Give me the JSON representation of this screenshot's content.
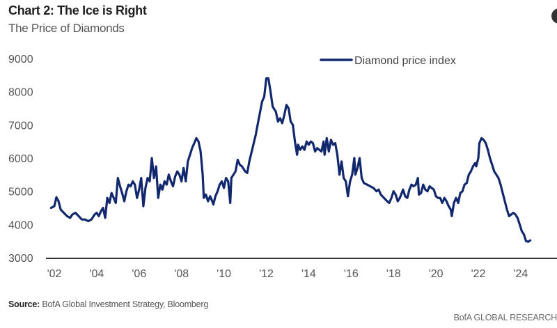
{
  "header": {
    "title": "Chart 2: The Ice is Right",
    "subtitle": "The Price of Diamonds"
  },
  "footer": {
    "source_label": "Source:",
    "source_text": "BofA Global Investment Strategy, Bloomberg",
    "brand": "BofA GLOBAL RESEARCH"
  },
  "colors": {
    "series": "#12286e",
    "axis": "#333333"
  },
  "chart_data": {
    "type": "line",
    "title": "Chart 2: The Ice is Right",
    "subtitle": "The Price of Diamonds",
    "xlabel": "",
    "ylabel": "",
    "ylim": [
      3000,
      9000
    ],
    "xlim": [
      2001.85,
      2025.3
    ],
    "grid": false,
    "legend": {
      "position": "top-right",
      "entries": [
        "Diamond price index"
      ]
    },
    "y_ticks": [
      {
        "value": 9000,
        "label": "9000"
      },
      {
        "value": 8000,
        "label": "8000"
      },
      {
        "value": 7000,
        "label": "7000"
      },
      {
        "value": 6000,
        "label": "6000"
      },
      {
        "value": 5000,
        "label": "5000"
      },
      {
        "value": 4000,
        "label": "4000"
      },
      {
        "value": 3000,
        "label": "3000"
      }
    ],
    "x_ticks": [
      {
        "value": 2002,
        "label": "'02"
      },
      {
        "value": 2004,
        "label": "'04"
      },
      {
        "value": 2006,
        "label": "'06"
      },
      {
        "value": 2008,
        "label": "'08"
      },
      {
        "value": 2010,
        "label": "'10"
      },
      {
        "value": 2012,
        "label": "'12"
      },
      {
        "value": 2014,
        "label": "'14"
      },
      {
        "value": 2016,
        "label": "'16"
      },
      {
        "value": 2018,
        "label": "'18"
      },
      {
        "value": 2020,
        "label": "'20"
      },
      {
        "value": 2022,
        "label": "'22"
      },
      {
        "value": 2024,
        "label": "'24"
      }
    ],
    "series": [
      {
        "name": "Diamond price index",
        "points": [
          [
            1.85,
            4500
          ],
          [
            2.0,
            4550
          ],
          [
            2.1,
            4820
          ],
          [
            2.2,
            4700
          ],
          [
            2.3,
            4450
          ],
          [
            2.45,
            4350
          ],
          [
            2.6,
            4250
          ],
          [
            2.75,
            4200
          ],
          [
            2.85,
            4300
          ],
          [
            3.0,
            4350
          ],
          [
            3.15,
            4250
          ],
          [
            3.3,
            4150
          ],
          [
            3.45,
            4150
          ],
          [
            3.6,
            4100
          ],
          [
            3.75,
            4150
          ],
          [
            3.9,
            4300
          ],
          [
            4.0,
            4350
          ],
          [
            4.1,
            4250
          ],
          [
            4.2,
            4400
          ],
          [
            4.3,
            4500
          ],
          [
            4.4,
            4200
          ],
          [
            4.5,
            4800
          ],
          [
            4.6,
            4650
          ],
          [
            4.7,
            4950
          ],
          [
            4.8,
            4800
          ],
          [
            4.9,
            4650
          ],
          [
            5.0,
            5400
          ],
          [
            5.1,
            5150
          ],
          [
            5.2,
            4950
          ],
          [
            5.3,
            4700
          ],
          [
            5.4,
            5000
          ],
          [
            5.5,
            5200
          ],
          [
            5.6,
            5150
          ],
          [
            5.7,
            5300
          ],
          [
            5.8,
            5200
          ],
          [
            5.9,
            4800
          ],
          [
            6.0,
            5050
          ],
          [
            6.1,
            5400
          ],
          [
            6.2,
            4550
          ],
          [
            6.3,
            5100
          ],
          [
            6.4,
            5400
          ],
          [
            6.5,
            5300
          ],
          [
            6.6,
            6000
          ],
          [
            6.7,
            5400
          ],
          [
            6.8,
            5750
          ],
          [
            6.9,
            4800
          ],
          [
            7.0,
            5200
          ],
          [
            7.1,
            5050
          ],
          [
            7.2,
            5300
          ],
          [
            7.3,
            5200
          ],
          [
            7.4,
            5500
          ],
          [
            7.5,
            5300
          ],
          [
            7.6,
            5150
          ],
          [
            7.7,
            5450
          ],
          [
            7.8,
            5600
          ],
          [
            7.9,
            5500
          ],
          [
            8.0,
            5300
          ],
          [
            8.1,
            5700
          ],
          [
            8.2,
            5300
          ],
          [
            8.3,
            5900
          ],
          [
            8.4,
            6100
          ],
          [
            8.5,
            6300
          ],
          [
            8.6,
            6450
          ],
          [
            8.7,
            6600
          ],
          [
            8.8,
            6500
          ],
          [
            8.9,
            6200
          ],
          [
            9.0,
            5500
          ],
          [
            9.05,
            4800
          ],
          [
            9.15,
            4900
          ],
          [
            9.25,
            4700
          ],
          [
            9.35,
            4850
          ],
          [
            9.45,
            4700
          ],
          [
            9.5,
            4600
          ],
          [
            9.6,
            4850
          ],
          [
            9.7,
            5000
          ],
          [
            9.8,
            5200
          ],
          [
            9.9,
            5300
          ],
          [
            10.0,
            5100
          ],
          [
            10.1,
            5400
          ],
          [
            10.2,
            5300
          ],
          [
            10.3,
            4650
          ],
          [
            10.35,
            5400
          ],
          [
            10.45,
            5500
          ],
          [
            10.55,
            5600
          ],
          [
            10.65,
            5950
          ],
          [
            10.75,
            5800
          ],
          [
            10.85,
            5750
          ],
          [
            11.0,
            5600
          ],
          [
            11.1,
            5550
          ],
          [
            11.2,
            5900
          ],
          [
            11.35,
            6300
          ],
          [
            11.5,
            6700
          ],
          [
            11.65,
            7200
          ],
          [
            11.8,
            7700
          ],
          [
            11.9,
            7850
          ],
          [
            12.0,
            8400
          ],
          [
            12.1,
            8400
          ],
          [
            12.2,
            8000
          ],
          [
            12.3,
            7550
          ],
          [
            12.45,
            7400
          ],
          [
            12.55,
            7100
          ],
          [
            12.65,
            7200
          ],
          [
            12.75,
            7050
          ],
          [
            12.85,
            7300
          ],
          [
            12.95,
            7600
          ],
          [
            13.05,
            7500
          ],
          [
            13.15,
            7100
          ],
          [
            13.25,
            7000
          ],
          [
            13.35,
            6500
          ],
          [
            13.45,
            6100
          ],
          [
            13.5,
            6400
          ],
          [
            13.6,
            6250
          ],
          [
            13.7,
            6350
          ],
          [
            13.8,
            6250
          ],
          [
            13.9,
            6500
          ],
          [
            14.0,
            6400
          ],
          [
            14.1,
            6500
          ],
          [
            14.2,
            6450
          ],
          [
            14.3,
            6200
          ],
          [
            14.4,
            6300
          ],
          [
            14.5,
            6250
          ],
          [
            14.6,
            6200
          ],
          [
            14.7,
            6500
          ],
          [
            14.75,
            6100
          ],
          [
            14.85,
            6600
          ],
          [
            14.95,
            6200
          ],
          [
            15.05,
            6550
          ],
          [
            15.15,
            6400
          ],
          [
            15.25,
            6450
          ],
          [
            15.35,
            6100
          ],
          [
            15.45,
            5500
          ],
          [
            15.55,
            5900
          ],
          [
            15.65,
            5400
          ],
          [
            15.75,
            5300
          ],
          [
            15.85,
            4850
          ],
          [
            15.95,
            5300
          ],
          [
            16.05,
            5500
          ],
          [
            16.15,
            6000
          ],
          [
            16.2,
            5500
          ],
          [
            16.3,
            5700
          ],
          [
            16.4,
            6000
          ],
          [
            16.5,
            5400
          ],
          [
            16.6,
            5250
          ],
          [
            16.75,
            5200
          ],
          [
            16.9,
            5150
          ],
          [
            17.05,
            5100
          ],
          [
            17.2,
            5000
          ],
          [
            17.3,
            5050
          ],
          [
            17.4,
            4900
          ],
          [
            17.55,
            4800
          ],
          [
            17.7,
            4700
          ],
          [
            17.8,
            4650
          ],
          [
            17.9,
            4800
          ],
          [
            18.0,
            5000
          ],
          [
            18.1,
            4900
          ],
          [
            18.2,
            4700
          ],
          [
            18.3,
            4800
          ],
          [
            18.45,
            5050
          ],
          [
            18.55,
            4850
          ],
          [
            18.65,
            4800
          ],
          [
            18.75,
            5050
          ],
          [
            18.85,
            5200
          ],
          [
            18.95,
            5150
          ],
          [
            19.05,
            5200
          ],
          [
            19.15,
            5400
          ],
          [
            19.2,
            4900
          ],
          [
            19.3,
            4950
          ],
          [
            19.4,
            5200
          ],
          [
            19.5,
            5050
          ],
          [
            19.6,
            5000
          ],
          [
            19.7,
            5150
          ],
          [
            19.8,
            5100
          ],
          [
            19.9,
            5050
          ],
          [
            20.0,
            4850
          ],
          [
            20.1,
            4800
          ],
          [
            20.2,
            4800
          ],
          [
            20.3,
            4650
          ],
          [
            20.4,
            4800
          ],
          [
            20.5,
            4700
          ],
          [
            20.6,
            4550
          ],
          [
            20.7,
            4450
          ],
          [
            20.75,
            4250
          ],
          [
            20.85,
            4650
          ],
          [
            20.95,
            4800
          ],
          [
            21.05,
            4650
          ],
          [
            21.15,
            4950
          ],
          [
            21.25,
            5000
          ],
          [
            21.35,
            5200
          ],
          [
            21.45,
            5250
          ],
          [
            21.55,
            5500
          ],
          [
            21.65,
            5600
          ],
          [
            21.75,
            5750
          ],
          [
            21.85,
            5850
          ],
          [
            21.9,
            5750
          ],
          [
            22.0,
            6000
          ],
          [
            22.05,
            6450
          ],
          [
            22.15,
            6600
          ],
          [
            22.25,
            6550
          ],
          [
            22.35,
            6450
          ],
          [
            22.45,
            6250
          ],
          [
            22.55,
            6000
          ],
          [
            22.65,
            5800
          ],
          [
            22.75,
            5600
          ],
          [
            22.85,
            5500
          ],
          [
            22.95,
            5400
          ],
          [
            23.05,
            5200
          ],
          [
            23.15,
            4950
          ],
          [
            23.25,
            4700
          ],
          [
            23.35,
            4450
          ],
          [
            23.45,
            4250
          ],
          [
            23.55,
            4300
          ],
          [
            23.65,
            4350
          ],
          [
            23.75,
            4300
          ],
          [
            23.85,
            4200
          ],
          [
            23.95,
            4000
          ],
          [
            24.05,
            3800
          ],
          [
            24.15,
            3700
          ],
          [
            24.25,
            3500
          ],
          [
            24.35,
            3480
          ],
          [
            24.45,
            3520
          ]
        ],
        "x_offset_base": 2000
      }
    ]
  }
}
